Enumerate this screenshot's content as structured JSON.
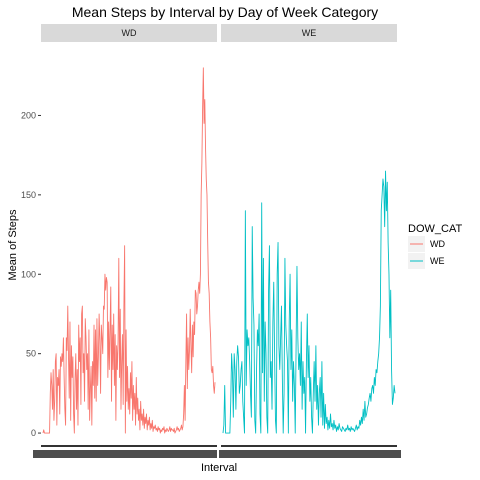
{
  "chart_data": {
    "type": "line",
    "title": "Mean Steps by Interval by Day of Week Category",
    "xlabel": "Interval",
    "ylabel": "Mean of Steps",
    "ylim": [
      -5,
      245
    ],
    "yticks": [
      0,
      50,
      100,
      150,
      200
    ],
    "grid": false,
    "facets": [
      "WD",
      "WE"
    ],
    "legend": {
      "title": "DOW_CAT",
      "placement": "right",
      "entries": [
        "WD",
        "WE"
      ]
    },
    "series": [
      {
        "name": "WD",
        "color": "#F8766D",
        "values": [
          0,
          2,
          0,
          0,
          0,
          0,
          0,
          0,
          0,
          0,
          25,
          38,
          30,
          15,
          40,
          8,
          20,
          45,
          50,
          5,
          35,
          30,
          40,
          12,
          48,
          42,
          50,
          45,
          60,
          35,
          15,
          5,
          60,
          52,
          80,
          48,
          22,
          70,
          8,
          55,
          35,
          48,
          12,
          0,
          35,
          50,
          15,
          40,
          5,
          68,
          45,
          60,
          18,
          75,
          80,
          38,
          50,
          20,
          72,
          60,
          40,
          50,
          15,
          65,
          8,
          28,
          42,
          5,
          45,
          30,
          68,
          22,
          65,
          20,
          72,
          30,
          48,
          75,
          58,
          25,
          68,
          60,
          50,
          80,
          78,
          100,
          90,
          98,
          95,
          35,
          70,
          40,
          65,
          92,
          20,
          68,
          40,
          75,
          30,
          62,
          8,
          55,
          40,
          58,
          110,
          35,
          78,
          15,
          45,
          62,
          18,
          80,
          118,
          0,
          65,
          20,
          42,
          15,
          28,
          12,
          38,
          22,
          45,
          8,
          30,
          15,
          25,
          5,
          35,
          12,
          22,
          8,
          15,
          2,
          20,
          8,
          12,
          5,
          15,
          3,
          10,
          6,
          12,
          2,
          8,
          5,
          10,
          2,
          6,
          3,
          8,
          1,
          4,
          3,
          5,
          2,
          3,
          1,
          4,
          2,
          3,
          0,
          2,
          1,
          3,
          2,
          4,
          0,
          2,
          1,
          3,
          2,
          1,
          2,
          4,
          1,
          3,
          2,
          2,
          1,
          3,
          0,
          1,
          2,
          4,
          2,
          3,
          1,
          2,
          3,
          5,
          2,
          4,
          12,
          30,
          8,
          45,
          75,
          28,
          60,
          40,
          52,
          78,
          55,
          38,
          68,
          48,
          70,
          62,
          90,
          88,
          75,
          80,
          90,
          95,
          88,
          100,
          150,
          170,
          205,
          230,
          195,
          210,
          180,
          160,
          150,
          120,
          95,
          88,
          70,
          60,
          40,
          38,
          42,
          30,
          25,
          32
        ]
      },
      {
        "name": "WE",
        "color": "#00BFC4",
        "values": [
          0,
          5,
          30,
          0,
          0,
          0,
          0,
          0,
          0,
          20,
          50,
          38,
          10,
          50,
          40,
          15,
          45,
          55,
          48,
          25,
          30,
          40,
          45,
          20,
          10,
          0,
          140,
          30,
          65,
          55,
          60,
          45,
          25,
          10,
          130,
          85,
          68,
          8,
          0,
          40,
          65,
          55,
          75,
          12,
          0,
          145,
          38,
          110,
          20,
          70,
          50,
          10,
          0,
          90,
          118,
          35,
          45,
          15,
          70,
          95,
          50,
          8,
          0,
          100,
          120,
          55,
          40,
          60,
          80,
          35,
          0,
          25,
          110,
          68,
          55,
          45,
          0,
          70,
          100,
          40,
          65,
          20,
          45,
          30,
          0,
          55,
          105,
          60,
          40,
          50,
          30,
          70,
          15,
          45,
          25,
          35,
          0,
          45,
          75,
          35,
          55,
          20,
          35,
          10,
          0,
          25,
          45,
          20,
          55,
          15,
          30,
          5,
          25,
          35,
          10,
          45,
          5,
          25,
          3,
          18,
          6,
          10,
          2,
          8,
          3,
          12,
          4,
          6,
          2,
          8,
          3,
          5,
          1,
          4,
          2,
          6,
          3,
          2,
          1,
          4,
          3,
          2,
          1,
          3,
          2,
          5,
          2,
          3,
          1,
          4,
          2,
          3,
          2,
          1,
          3,
          5,
          2,
          4,
          3,
          8,
          5,
          10,
          6,
          15,
          8,
          20,
          10,
          12,
          16,
          18,
          22,
          25,
          20,
          28,
          30,
          25,
          35,
          30,
          40,
          38,
          45,
          50,
          60,
          80,
          140,
          150,
          160,
          155,
          130,
          165,
          140,
          158,
          120,
          100,
          60,
          90,
          40,
          18,
          22,
          30,
          25
        ]
      }
    ]
  }
}
